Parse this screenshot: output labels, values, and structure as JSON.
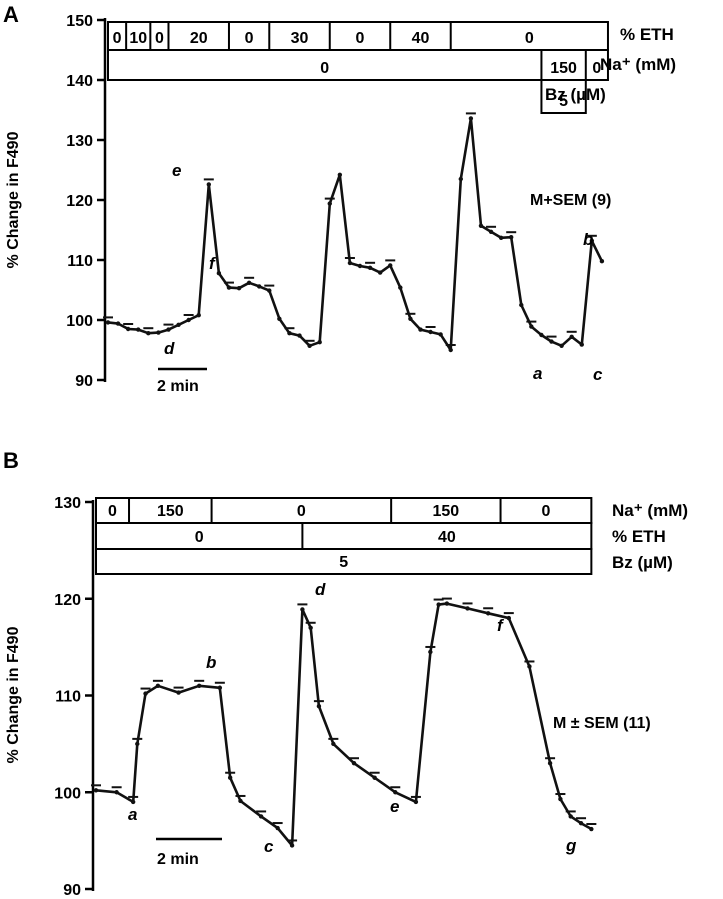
{
  "chart_data": [
    {
      "panel": "A",
      "type": "line",
      "ylabel": "% Change in F490",
      "ylim": [
        90,
        150
      ],
      "yticks": [
        90,
        100,
        110,
        120,
        130,
        140,
        150
      ],
      "xlim": [
        0,
        25
      ],
      "conditions": [
        {
          "label": "% ETH",
          "cells": [
            {
              "value": "0",
              "x0": 0,
              "x1": 0.9
            },
            {
              "value": "10",
              "x0": 0.9,
              "x1": 2.1
            },
            {
              "value": "0",
              "x0": 2.1,
              "x1": 3
            },
            {
              "value": "20",
              "x0": 3,
              "x1": 6
            },
            {
              "value": "0",
              "x0": 6,
              "x1": 8
            },
            {
              "value": "30",
              "x0": 8,
              "x1": 11
            },
            {
              "value": "0",
              "x0": 11,
              "x1": 14
            },
            {
              "value": "40",
              "x0": 14,
              "x1": 17
            },
            {
              "value": "0",
              "x0": 17,
              "x1": 24.8
            }
          ]
        },
        {
          "label": "Na⁺ (mM)",
          "cells": [
            {
              "value": "0",
              "x0": 0,
              "x1": 21.5
            },
            {
              "value": "150",
              "x0": 21.5,
              "x1": 23.7
            },
            {
              "value": "0",
              "x0": 23.7,
              "x1": 24.8
            }
          ]
        },
        {
          "label": "Bz (µM)",
          "cells": [
            {
              "value": "5",
              "x0": 21.5,
              "x1": 23.7
            }
          ]
        }
      ],
      "series": [
        {
          "x": [
            0,
            0.5,
            1,
            1.5,
            2,
            2.5,
            3,
            3.5,
            4,
            4.5,
            5,
            5.5,
            6,
            6.5,
            7,
            7.5,
            8,
            8.5,
            9,
            9.5,
            10,
            10.5,
            11,
            11.5,
            12,
            12.5,
            13,
            13.5,
            14,
            14.5,
            15,
            15.5,
            16,
            16.5,
            17,
            17.5,
            18,
            18.5,
            19,
            19.5,
            20,
            20.5,
            21,
            21.5,
            22,
            22.5,
            23,
            23.5,
            24,
            24.5
          ],
          "values": [
            99.6,
            99.4,
            98.5,
            98.4,
            97.8,
            97.9,
            98.4,
            99.2,
            100.0,
            100.8,
            122.6,
            107.8,
            105.4,
            105.3,
            106.2,
            105.6,
            104.9,
            100.2,
            97.8,
            97.4,
            95.7,
            96.3,
            119.4,
            124.2,
            109.5,
            109.0,
            108.7,
            107.9,
            109.1,
            105.4,
            100.2,
            98.4,
            98.0,
            97.6,
            95.0,
            123.5,
            133.6,
            115.7,
            114.7,
            113.7,
            113.8,
            102.5,
            98.9,
            97.5,
            96.4,
            95.7,
            97.2,
            95.9,
            113.2,
            109.8
          ]
        }
      ],
      "annotations": [
        "e",
        "f",
        "d",
        "a",
        "b",
        "c",
        "M+SEM (9)",
        "2 min"
      ]
    },
    {
      "panel": "B",
      "type": "line",
      "ylabel": "% Change in F490",
      "ylim": [
        90,
        130
      ],
      "yticks": [
        90,
        100,
        110,
        120,
        130
      ],
      "xlim": [
        0,
        25
      ],
      "conditions": [
        {
          "label": "Na⁺ (mM)",
          "cells": [
            {
              "value": "0",
              "x0": 0,
              "x1": 1.6
            },
            {
              "value": "150",
              "x0": 1.6,
              "x1": 5.6
            },
            {
              "value": "0",
              "x0": 5.6,
              "x1": 14.3
            },
            {
              "value": "150",
              "x0": 14.3,
              "x1": 19.6
            },
            {
              "value": "0",
              "x0": 19.6,
              "x1": 24.0
            }
          ]
        },
        {
          "label": "% ETH",
          "cells": [
            {
              "value": "0",
              "x0": 0,
              "x1": 10.0
            },
            {
              "value": "40",
              "x0": 10.0,
              "x1": 24.0
            }
          ]
        },
        {
          "label": "Bz (µM)",
          "cells": [
            {
              "value": "5",
              "x0": 0,
              "x1": 24.0
            }
          ]
        }
      ],
      "series": [
        {
          "x": [
            0,
            1,
            1.8,
            2.0,
            2.4,
            3,
            4,
            5,
            6,
            6.5,
            7,
            8,
            8.8,
            9.5,
            10,
            10.4,
            10.8,
            11.5,
            12.5,
            13.5,
            14.5,
            15.5,
            16.2,
            16.6,
            17,
            18,
            19,
            20,
            21,
            22,
            22.5,
            23.0,
            23.5,
            24.0
          ],
          "values": [
            100.2,
            100.0,
            99.0,
            105.0,
            110.2,
            111.0,
            110.3,
            111.0,
            110.8,
            101.5,
            99.1,
            97.5,
            96.3,
            94.5,
            118.9,
            117.0,
            108.9,
            105.0,
            103.0,
            101.5,
            100.0,
            99.0,
            114.5,
            119.4,
            119.5,
            119.0,
            118.5,
            118.0,
            113.0,
            103.0,
            99.3,
            97.5,
            96.8,
            96.2
          ]
        }
      ],
      "annotations": [
        "a",
        "b",
        "c",
        "d",
        "e",
        "f",
        "g",
        "M ± SEM (11)",
        "2 min"
      ]
    }
  ],
  "panel_labels": {
    "a": "A",
    "b": "B"
  },
  "scale_bar": "2 min",
  "sem_a": "M+SEM (9)",
  "sem_b": "M ± SEM (11)"
}
